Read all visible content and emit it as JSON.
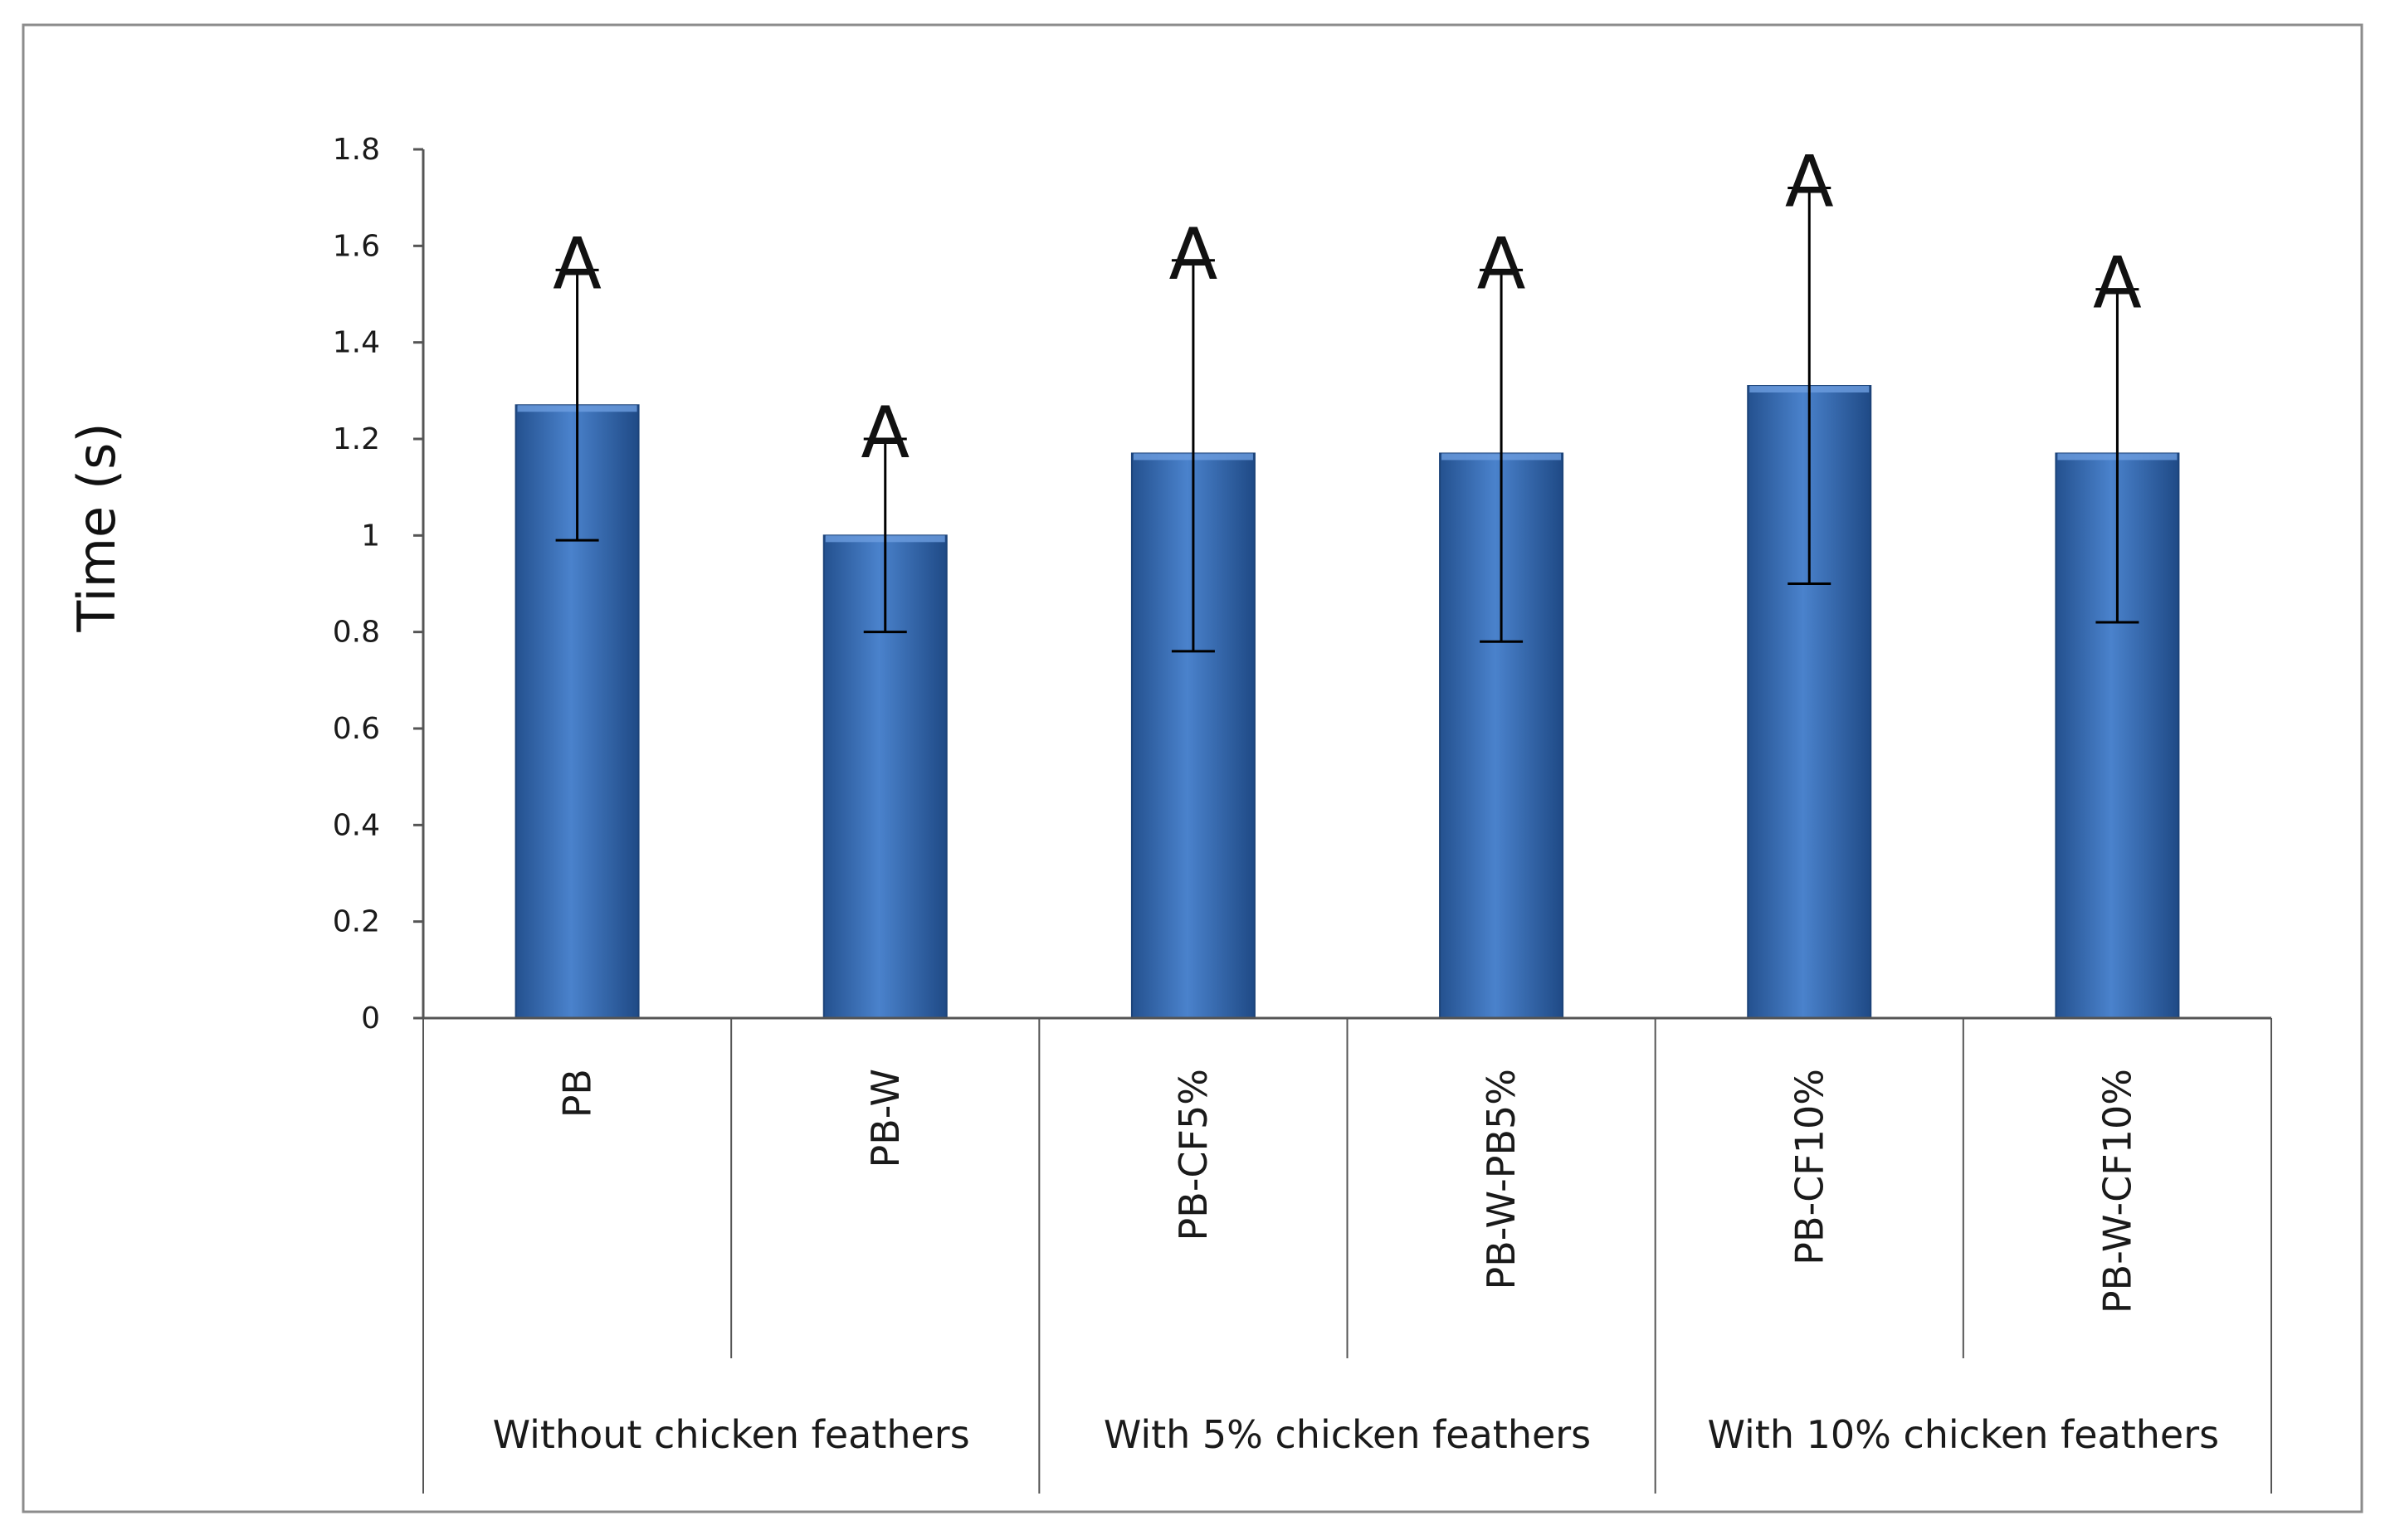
{
  "chart_data": {
    "type": "bar",
    "title": "",
    "xlabel": "",
    "ylabel": "Time (s)",
    "ylim": [
      0,
      1.8
    ],
    "yticks": [
      0,
      0.2,
      0.4,
      0.6,
      0.8,
      1,
      1.2,
      1.4,
      1.6,
      1.8
    ],
    "ytick_labels": [
      "0",
      "0.2",
      "0.4",
      "0.6",
      "0.8",
      "1",
      "1.2",
      "1.4",
      "1.6",
      "1.8"
    ],
    "grid": false,
    "legend": "none",
    "categories": [
      "PB",
      "PB-W",
      "PB-CF5%",
      "PB-W-PB5%",
      "PB-CF10%",
      "PB-W-CF10%"
    ],
    "groups": [
      {
        "label": "Without chicken feathers",
        "categories": [
          "PB",
          "PB-W"
        ]
      },
      {
        "label": "With 5% chicken feathers",
        "categories": [
          "PB-CF5%",
          "PB-W-PB5%"
        ]
      },
      {
        "label": "With 10% chicken feathers",
        "categories": [
          "PB-CF10%",
          "PB-W-CF10%"
        ]
      }
    ],
    "values": [
      1.27,
      1.0,
      1.17,
      1.17,
      1.31,
      1.17
    ],
    "error_low": [
      0.99,
      0.8,
      0.76,
      0.78,
      0.9,
      0.82
    ],
    "error_high": [
      1.55,
      1.2,
      1.57,
      1.55,
      1.72,
      1.51
    ],
    "annotations": [
      "A",
      "A",
      "A",
      "A",
      "A",
      "A"
    ],
    "bar_color": "#3e72bb"
  }
}
